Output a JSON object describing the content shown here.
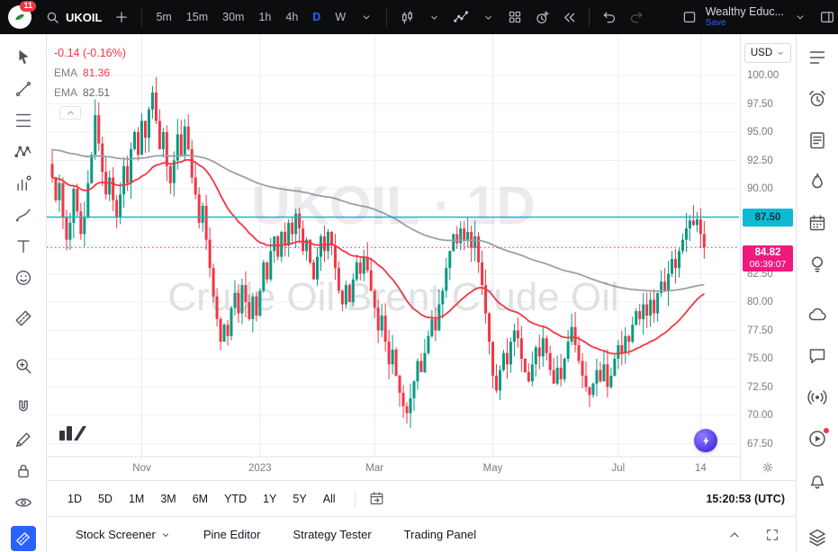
{
  "header": {
    "notification_badge": "11",
    "symbol": "UKOIL",
    "timeframes": [
      "5m",
      "15m",
      "30m",
      "1h",
      "4h",
      "D",
      "W"
    ],
    "active_timeframe": "D",
    "layout_title": "Wealthy Educ...",
    "save_label": "Save"
  },
  "legend": {
    "change": "-0.14 (-0.16%)",
    "ema_fast": {
      "name": "EMA",
      "value": "81.36"
    },
    "ema_slow": {
      "name": "EMA",
      "value": "82.51"
    }
  },
  "watermark": {
    "line1": "UKOIL · 1D",
    "line2": "Crude Oil Brent Crude Oil"
  },
  "price_axis": {
    "currency": "USD",
    "labels": [
      {
        "text": "100.00",
        "p": 100
      },
      {
        "text": "97.50",
        "p": 97.5
      },
      {
        "text": "95.00",
        "p": 95
      },
      {
        "text": "92.50",
        "p": 92.5
      },
      {
        "text": "90.00",
        "p": 90
      },
      {
        "text": "82.50",
        "p": 82.5
      },
      {
        "text": "80.00",
        "p": 80
      },
      {
        "text": "77.50",
        "p": 77.5
      },
      {
        "text": "75.00",
        "p": 75
      },
      {
        "text": "72.50",
        "p": 72.5
      },
      {
        "text": "70.00",
        "p": 70
      },
      {
        "text": "67.50",
        "p": 67.5
      }
    ],
    "level_badge": {
      "text": "87.50",
      "price": 87.5
    },
    "last": {
      "text": "84.82",
      "countdown": "06:39:07",
      "price": 84.82
    }
  },
  "time_axis": {
    "labels": [
      {
        "text": "Nov",
        "bar": 25
      },
      {
        "text": "2023",
        "bar": 58
      },
      {
        "text": "Mar",
        "bar": 90
      },
      {
        "text": "May",
        "bar": 123
      },
      {
        "text": "Jul",
        "bar": 158
      },
      {
        "text": "14",
        "bar": 181
      }
    ]
  },
  "chart_data": {
    "type": "candlestick",
    "symbol": "UKOIL",
    "interval": "1D",
    "description": "Crude Oil Brent Crude Oil",
    "change": "-0.14",
    "change_pct": "-0.16%",
    "last_price": 84.82,
    "horizontal_line": 87.5,
    "countdown": "06:39:07",
    "indicators": [
      {
        "type": "EMA",
        "value": 81.36,
        "color": "#f23645"
      },
      {
        "type": "EMA",
        "value": 82.51,
        "color": "#9aa0a8"
      }
    ],
    "y_axis_ticks": [
      100,
      97.5,
      95,
      92.5,
      90,
      87.5,
      85,
      82.5,
      80,
      77.5,
      75,
      72.5,
      70,
      67.5
    ],
    "x_axis_labels": [
      "Nov",
      "2023",
      "Mar",
      "May",
      "Jul",
      "14"
    ],
    "closes": [
      91,
      89,
      90.5,
      87.5,
      85.5,
      87,
      90,
      88,
      86,
      87.5,
      90.5,
      93,
      96.5,
      94,
      91.5,
      89.5,
      91,
      89,
      87.5,
      89.5,
      92,
      90.5,
      93.5,
      95,
      93,
      96,
      94.5,
      97,
      98.5,
      96,
      93.5,
      95,
      92,
      90.5,
      92.5,
      94.8,
      93,
      95.5,
      93.5,
      91,
      89.5,
      87,
      88.5,
      85.5,
      83,
      80.5,
      78.5,
      76.5,
      78,
      77,
      79.5,
      80.8,
      79,
      81.5,
      80,
      78.5,
      80.5,
      78.8,
      81,
      83.5,
      82,
      84.5,
      85.8,
      84,
      86.2,
      85,
      87,
      86,
      87.8,
      86.5,
      84.5,
      85.5,
      83.5,
      82,
      84,
      85.8,
      84.5,
      86.2,
      85,
      83,
      81,
      79.8,
      81.5,
      80,
      82,
      83.5,
      82.5,
      84,
      82.8,
      81,
      79.5,
      77.5,
      78.8,
      76.5,
      74.5,
      75.8,
      73.5,
      72,
      70.8,
      70.2,
      71.5,
      73,
      74.8,
      73.8,
      75.5,
      77,
      78.5,
      77.5,
      79.8,
      81,
      83,
      84.5,
      86,
      85.2,
      86.5,
      85.5,
      86.2,
      84.8,
      85.8,
      83.5,
      81.5,
      79,
      76.5,
      73.5,
      72.2,
      74,
      75.5,
      74.5,
      76.5,
      77.5,
      76.8,
      75,
      73.8,
      73,
      74.5,
      76,
      75.2,
      76.8,
      75.5,
      74,
      72.8,
      74.2,
      73.2,
      75,
      76.5,
      77.8,
      76.2,
      74.8,
      73.5,
      72.5,
      71.8,
      72.8,
      74,
      73,
      74.5,
      72.5,
      73.5,
      75,
      76.2,
      75.5,
      77,
      76.5,
      78,
      79.2,
      78.5,
      79.8,
      78.8,
      80.2,
      79,
      80.8,
      81.8,
      81,
      82.5,
      83.8,
      83,
      84.5,
      85.5,
      86.5,
      87.2,
      86.8,
      87.3,
      86,
      84.82
    ]
  },
  "range_toolbar": {
    "ranges": [
      "1D",
      "5D",
      "1M",
      "3M",
      "6M",
      "YTD",
      "1Y",
      "5Y",
      "All"
    ],
    "clock": "15:20:53 (UTC)"
  },
  "bottom_tabs": [
    {
      "label": "Stock Screener",
      "has_menu": true
    },
    {
      "label": "Pine Editor",
      "has_menu": false
    },
    {
      "label": "Strategy Tester",
      "has_menu": false
    },
    {
      "label": "Trading Panel",
      "has_menu": false
    }
  ],
  "left_toolbar": {
    "tools": [
      "cursor",
      "trend-line",
      "fib-retracement",
      "pattern",
      "forecast",
      "brush",
      "text",
      "emoji",
      "measure",
      "zoom-in",
      "magnet",
      "edit",
      "lock",
      "eye"
    ],
    "active_tool": "measure"
  },
  "right_sidebar": {
    "panels": [
      "watchlist",
      "alerts",
      "news",
      "hotlists",
      "calendar",
      "ideas",
      "minds",
      "chat",
      "streams",
      "videos",
      "notifications"
    ],
    "bottom_panel": "object-tree"
  },
  "colors": {
    "accent": "#2962ff",
    "up": "#089981",
    "down": "#f23645",
    "ema_fast": "#f23645",
    "ema_slow": "#9aa0a8",
    "hline": "#0ebad1",
    "last_badge": "#f0197d",
    "grid": "#eef1f6",
    "vgrid": "#e9ecf2",
    "axis_text": "#787b86"
  }
}
